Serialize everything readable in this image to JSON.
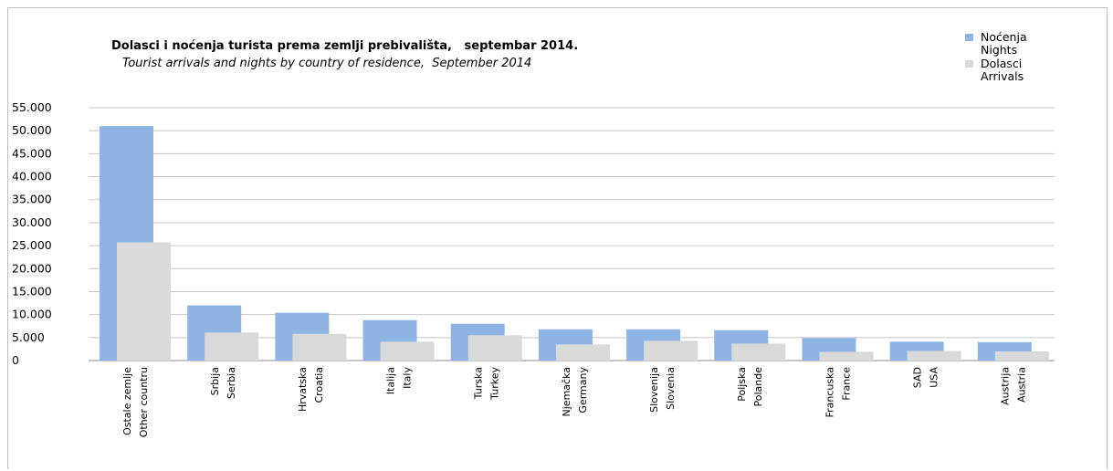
{
  "chart_data": {
    "type": "bar",
    "title": "Dolasci i noćenja turista prema zemlji prebivališta,   septembar 2014.",
    "subtitle": "Tourist arrivals and nights by country of residence,  September 2014",
    "categories": [
      [
        "Ostale zemlje",
        "Other countru"
      ],
      [
        "Srbija",
        "Serbia"
      ],
      [
        "Hrvatska",
        "Croatia"
      ],
      [
        "Italija",
        "Italy"
      ],
      [
        "Turska",
        "Turkey"
      ],
      [
        "Njemačka",
        "Germany"
      ],
      [
        "Slovenija",
        "Slovenia"
      ],
      [
        "Poljska",
        "Polande"
      ],
      [
        "Francuska",
        "France"
      ],
      [
        "SAD",
        "USA"
      ],
      [
        "Austrija",
        "Austria"
      ]
    ],
    "series": [
      {
        "name": "Noćenja",
        "name_en": "Nights",
        "color": "#8eb4e3",
        "values": [
          51000,
          12000,
          10400,
          8800,
          8000,
          6800,
          6800,
          6600,
          4900,
          4100,
          4000
        ]
      },
      {
        "name": "Dolasci",
        "name_en": "Arrivals",
        "color": "#d9d9d9",
        "values": [
          25700,
          6100,
          5800,
          4100,
          5500,
          3500,
          4300,
          3700,
          1900,
          2100,
          2000
        ]
      }
    ],
    "yticks": [
      "0",
      "5.000",
      "10.000",
      "15.000",
      "20.000",
      "25.000",
      "30.000",
      "35.000",
      "40.000",
      "45.000",
      "50.000",
      "55.000"
    ],
    "ylim": [
      0,
      55000
    ],
    "grid": true,
    "legend_position": "top-right"
  }
}
